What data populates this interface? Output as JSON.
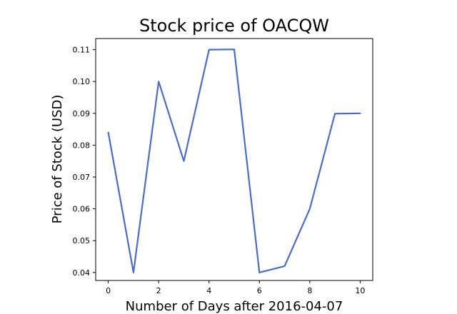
{
  "chart_data": {
    "type": "line",
    "title": "Stock price of OACQW",
    "xlabel": "Number of Days after 2016-04-07",
    "ylabel": "Price of Stock (USD)",
    "x": [
      0,
      1,
      2,
      3,
      4,
      5,
      6,
      7,
      8,
      9,
      10
    ],
    "series": [
      {
        "values": [
          0.084,
          0.04,
          0.1,
          0.075,
          0.11,
          0.1101,
          0.04,
          0.042,
          0.06,
          0.0899,
          0.09
        ],
        "color": "#4c6cc9"
      }
    ],
    "xlim": [
      -0.5,
      10.5
    ],
    "ylim": [
      0.0375,
      0.1135
    ],
    "xticks": [
      0,
      2,
      4,
      6,
      8,
      10
    ],
    "yticks": [
      0.04,
      0.05,
      0.06,
      0.07,
      0.08,
      0.09,
      0.1,
      0.11
    ],
    "ytick_labels": [
      "0.04",
      "0.05",
      "0.06",
      "0.07",
      "0.08",
      "0.09",
      "0.10",
      "0.11"
    ],
    "grid": false,
    "legend": "none"
  }
}
